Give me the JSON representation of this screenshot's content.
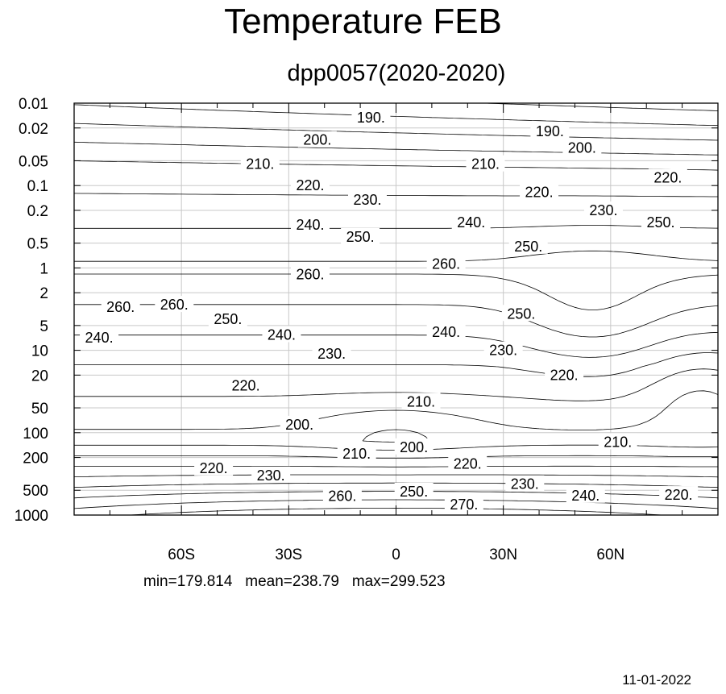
{
  "title": "Temperature FEB",
  "subtitle": "dpp0057(2020-2020)",
  "stats": {
    "min": "min=179.814",
    "mean": "mean=238.79",
    "max": "max=299.523"
  },
  "date": "11-01-2022",
  "chart_data": {
    "type": "contour",
    "title": "Temperature FEB",
    "subtitle": "dpp0057(2020-2020)",
    "xlabel": "",
    "ylabel": "",
    "x_axis": {
      "kind": "latitude",
      "range": [
        -90,
        90
      ],
      "ticks": [
        {
          "value": -60,
          "label": "60S"
        },
        {
          "value": -30,
          "label": "30S"
        },
        {
          "value": 0,
          "label": "0"
        },
        {
          "value": 30,
          "label": "30N"
        },
        {
          "value": 60,
          "label": "60N"
        }
      ]
    },
    "y_axis": {
      "kind": "pressure",
      "scale": "log",
      "inverted": true,
      "range": [
        0.01,
        1000
      ],
      "ticks": [
        "0.01",
        "0.02",
        "0.05",
        "0.1",
        "0.2",
        "0.5",
        "1",
        "2",
        "5",
        "10",
        "20",
        "50",
        "100",
        "200",
        "500",
        "1000"
      ]
    },
    "grid": true,
    "contour_interval": 10,
    "contour_labels": [
      {
        "text": "190.",
        "lat": -7,
        "p": 0.015
      },
      {
        "text": "190.",
        "lat": 43,
        "p": 0.022
      },
      {
        "text": "200.",
        "lat": -22,
        "p": 0.028
      },
      {
        "text": "200.",
        "lat": 52,
        "p": 0.035
      },
      {
        "text": "210.",
        "lat": -38,
        "p": 0.055
      },
      {
        "text": "210.",
        "lat": 25,
        "p": 0.055
      },
      {
        "text": "220.",
        "lat": -24,
        "p": 0.1
      },
      {
        "text": "220.",
        "lat": 40,
        "p": 0.12
      },
      {
        "text": "220.",
        "lat": 76,
        "p": 0.08
      },
      {
        "text": "230.",
        "lat": -8,
        "p": 0.15
      },
      {
        "text": "230.",
        "lat": 58,
        "p": 0.2
      },
      {
        "text": "240.",
        "lat": -24,
        "p": 0.3
      },
      {
        "text": "240.",
        "lat": 21,
        "p": 0.28
      },
      {
        "text": "250.",
        "lat": -10,
        "p": 0.42
      },
      {
        "text": "250.",
        "lat": 37,
        "p": 0.55
      },
      {
        "text": "250.",
        "lat": 74,
        "p": 0.28
      },
      {
        "text": "260.",
        "lat": 14,
        "p": 0.9
      },
      {
        "text": "260.",
        "lat": -24,
        "p": 1.2
      },
      {
        "text": "260.",
        "lat": -77,
        "p": 3
      },
      {
        "text": "260.",
        "lat": -62,
        "p": 2.8
      },
      {
        "text": "250.",
        "lat": -47,
        "p": 4.2
      },
      {
        "text": "250.",
        "lat": 35,
        "p": 3.6
      },
      {
        "text": "240.",
        "lat": -83,
        "p": 7
      },
      {
        "text": "240.",
        "lat": -32,
        "p": 6.5
      },
      {
        "text": "240.",
        "lat": 14,
        "p": 6
      },
      {
        "text": "230.",
        "lat": -18,
        "p": 11
      },
      {
        "text": "230.",
        "lat": 30,
        "p": 10
      },
      {
        "text": "220.",
        "lat": -42,
        "p": 27
      },
      {
        "text": "220.",
        "lat": 47,
        "p": 20
      },
      {
        "text": "210.",
        "lat": 7,
        "p": 42
      },
      {
        "text": "200.",
        "lat": -27,
        "p": 80
      },
      {
        "text": "200.",
        "lat": 5,
        "p": 150
      },
      {
        "text": "210.",
        "lat": -11,
        "p": 180
      },
      {
        "text": "210.",
        "lat": 62,
        "p": 130
      },
      {
        "text": "220.",
        "lat": -51,
        "p": 270
      },
      {
        "text": "220.",
        "lat": 20,
        "p": 240
      },
      {
        "text": "220.",
        "lat": 79,
        "p": 570
      },
      {
        "text": "230.",
        "lat": -35,
        "p": 330
      },
      {
        "text": "230.",
        "lat": 36,
        "p": 420
      },
      {
        "text": "240.",
        "lat": 53,
        "p": 580
      },
      {
        "text": "250.",
        "lat": 5,
        "p": 520
      },
      {
        "text": "260.",
        "lat": -15,
        "p": 590
      },
      {
        "text": "270.",
        "lat": 19,
        "p": 750
      }
    ],
    "range_stats": {
      "min": 179.814,
      "mean": 238.79,
      "max": 299.523
    }
  }
}
